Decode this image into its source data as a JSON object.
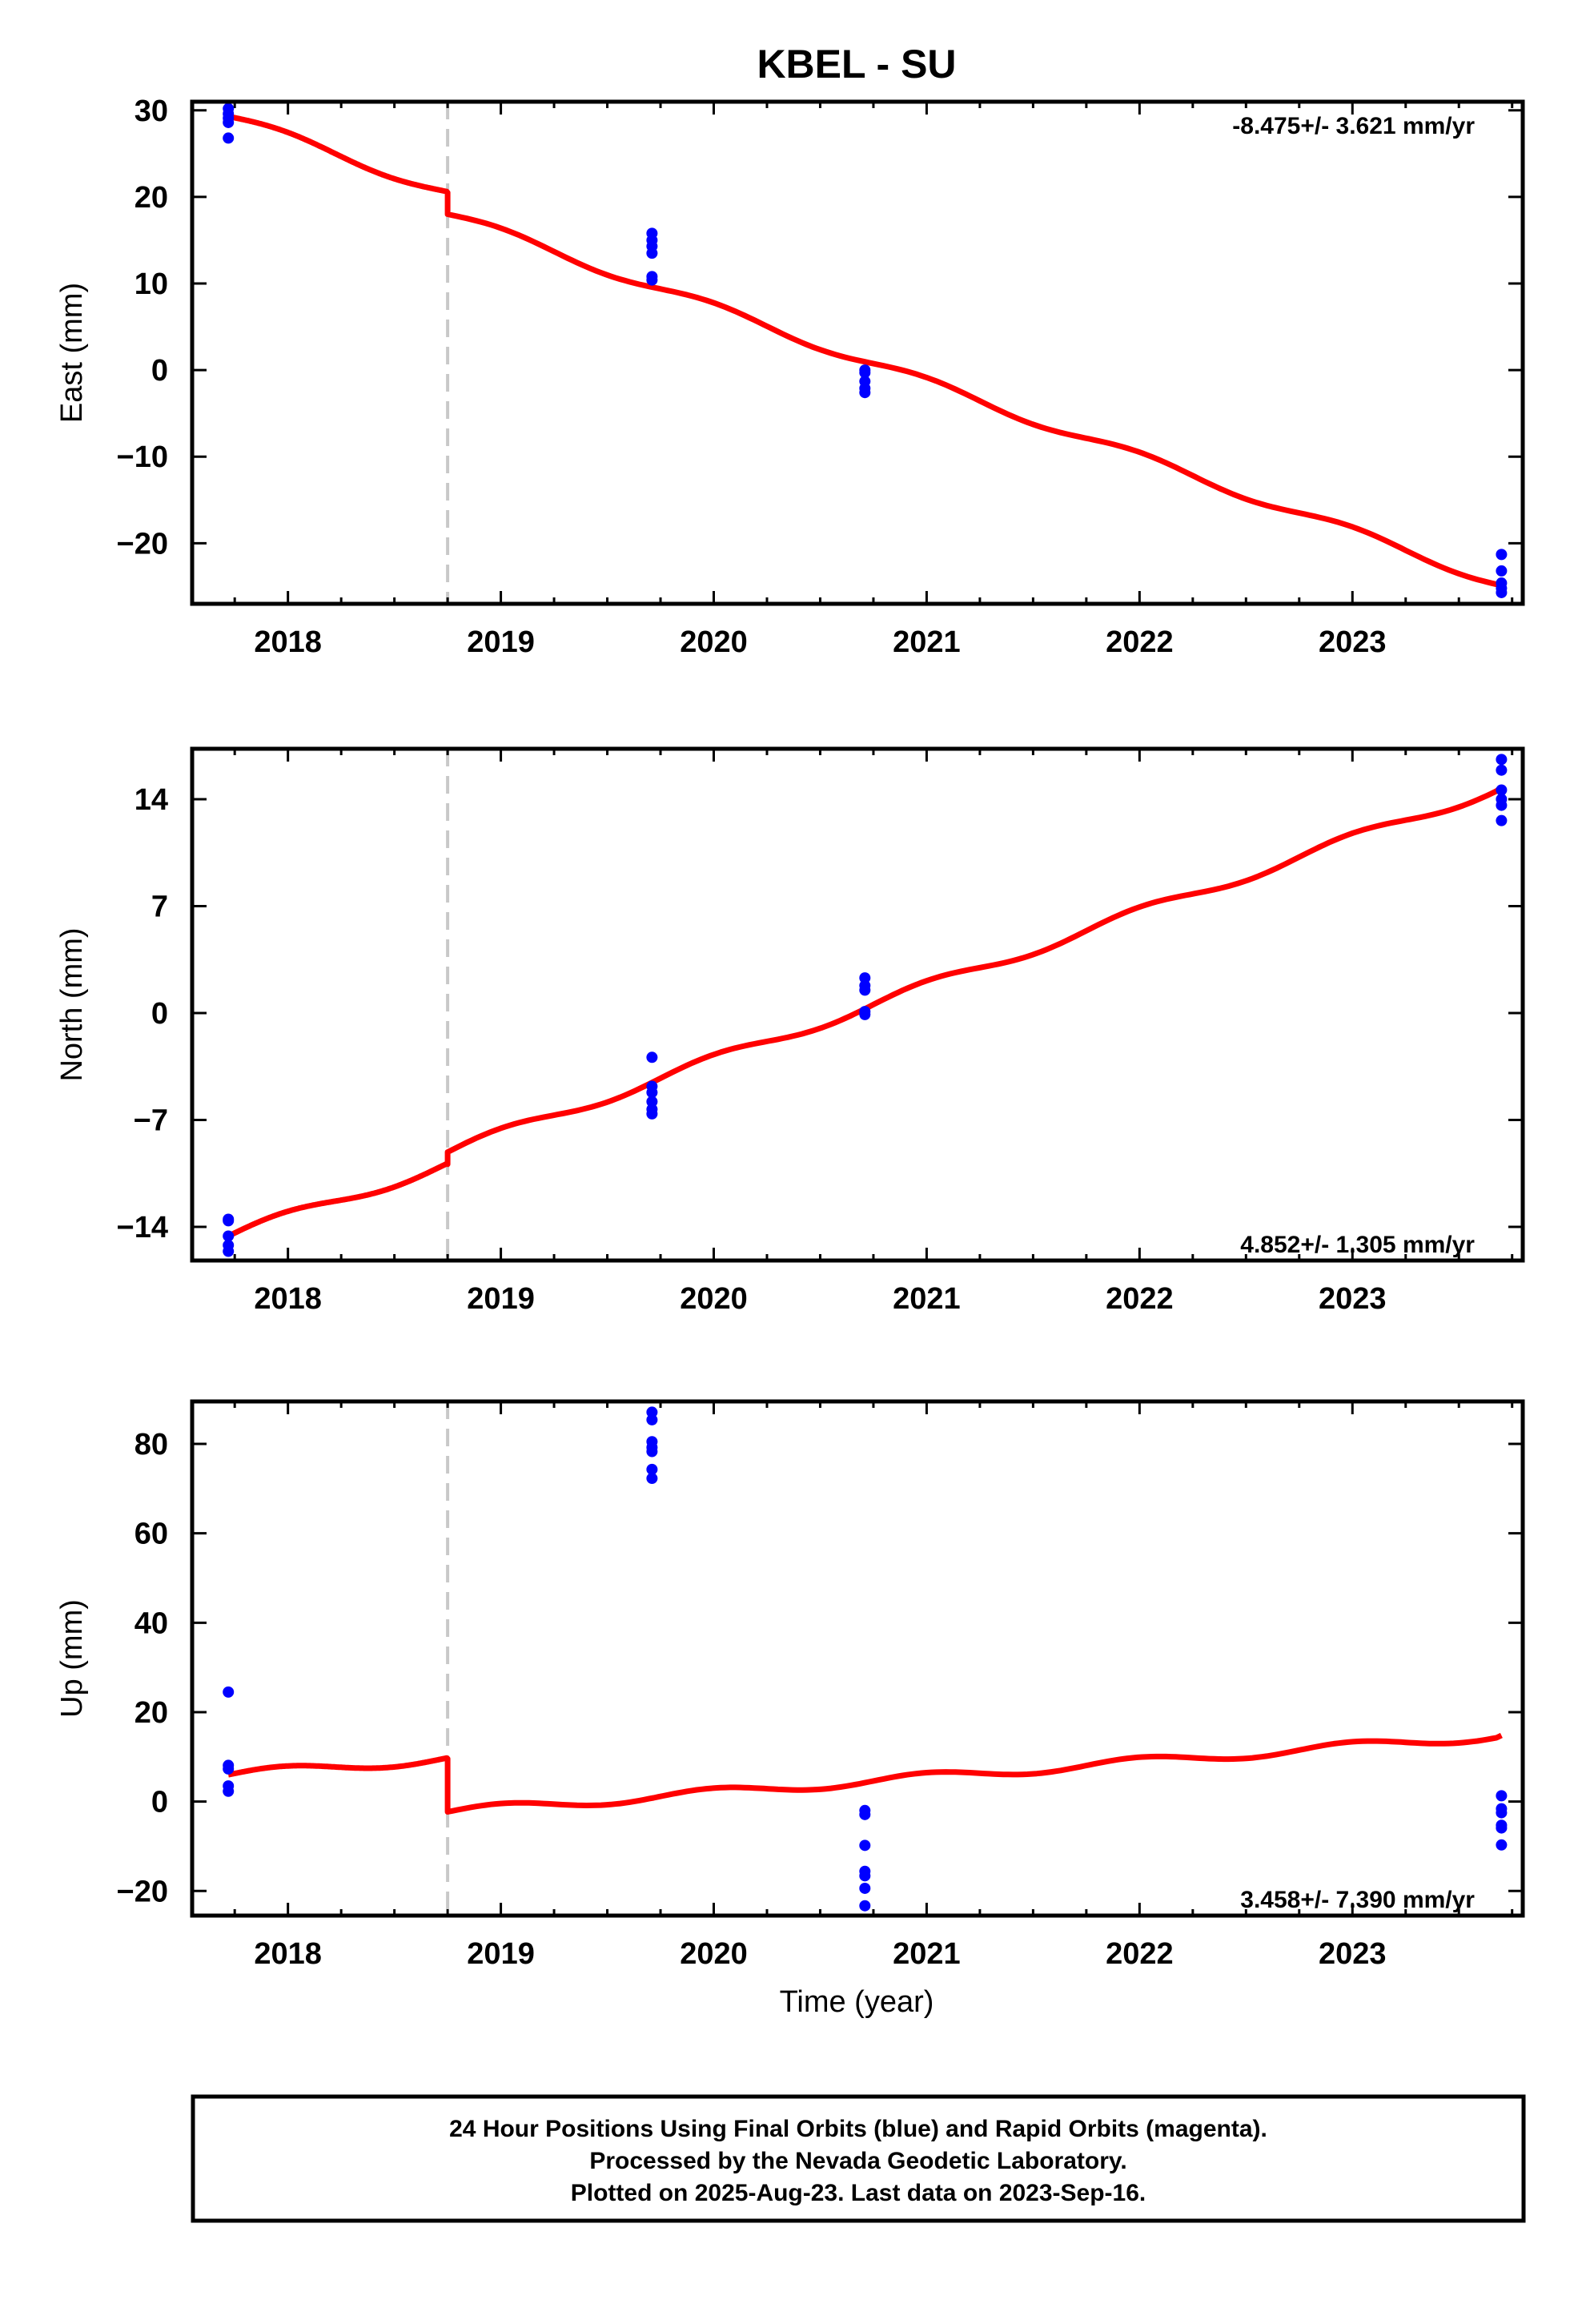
{
  "title": "KBEL - SU",
  "xlabel": "Time (year)",
  "footer": {
    "line1": "24 Hour Positions Using Final Orbits (blue) and Rapid Orbits (magenta).",
    "line2": "Processed by the Nevada Geodetic Laboratory.",
    "line3": "Plotted on 2025-Aug-23. Last data on 2023-Sep-16."
  },
  "colors": {
    "final": "#0000ff",
    "model": "#ff0000",
    "offset_line": "#c8c8c8"
  },
  "chart_data": [
    {
      "type": "scatter",
      "component": "east",
      "ylabel": "East (mm)",
      "rate_label": "-8.475+/- 3.621 mm/yr",
      "rate_position": "top-right",
      "xlim": [
        2017.55,
        2023.8
      ],
      "ylim": [
        -27,
        31
      ],
      "xticks": [
        2018,
        2019,
        2020,
        2021,
        2022,
        2023
      ],
      "yticks": [
        30,
        20,
        10,
        0,
        -10,
        -20
      ],
      "ytick_labels": [
        "30",
        "20",
        "10",
        "0",
        "−10",
        "−20"
      ],
      "offset_epoch": 2018.75,
      "points": [
        {
          "x": 2017.72,
          "y": 30.2
        },
        {
          "x": 2017.72,
          "y": 29.6
        },
        {
          "x": 2017.72,
          "y": 29.1
        },
        {
          "x": 2017.72,
          "y": 28.6
        },
        {
          "x": 2017.72,
          "y": 26.8
        },
        {
          "x": 2019.71,
          "y": 15.8
        },
        {
          "x": 2019.71,
          "y": 15.0
        },
        {
          "x": 2019.71,
          "y": 14.3
        },
        {
          "x": 2019.71,
          "y": 13.5
        },
        {
          "x": 2019.71,
          "y": 10.8
        },
        {
          "x": 2019.71,
          "y": 10.4
        },
        {
          "x": 2020.71,
          "y": 0.0
        },
        {
          "x": 2020.71,
          "y": -0.3
        },
        {
          "x": 2020.71,
          "y": -1.3
        },
        {
          "x": 2020.71,
          "y": -2.1
        },
        {
          "x": 2020.71,
          "y": -2.6
        },
        {
          "x": 2023.7,
          "y": -21.3
        },
        {
          "x": 2023.7,
          "y": -23.2
        },
        {
          "x": 2023.7,
          "y": -24.6
        },
        {
          "x": 2023.7,
          "y": -25.2
        },
        {
          "x": 2023.7,
          "y": -25.7
        }
      ],
      "model": {
        "segments": [
          {
            "x0": 2017.72,
            "x1": 2018.75,
            "y0": 29.3,
            "y1": 20.5
          },
          {
            "x0": 2018.75,
            "x1": 2023.7,
            "y0": 18.0,
            "y1": -24.7
          }
        ],
        "seasonal_amplitude": 0.55
      }
    },
    {
      "type": "scatter",
      "component": "north",
      "ylabel": "North (mm)",
      "rate_label": "4.852+/- 1.305 mm/yr",
      "rate_position": "bottom-right",
      "xlim": [
        2017.55,
        2023.8
      ],
      "ylim": [
        -16.2,
        17.3
      ],
      "xticks": [
        2018,
        2019,
        2020,
        2021,
        2022,
        2023
      ],
      "yticks": [
        14,
        7,
        0,
        -7,
        -14
      ],
      "ytick_labels": [
        "14",
        "7",
        "0",
        "−7",
        "−14"
      ],
      "offset_epoch": 2018.75,
      "points": [
        {
          "x": 2017.72,
          "y": -13.5
        },
        {
          "x": 2017.72,
          "y": -13.6
        },
        {
          "x": 2017.72,
          "y": -14.6
        },
        {
          "x": 2017.72,
          "y": -15.2
        },
        {
          "x": 2017.72,
          "y": -15.6
        },
        {
          "x": 2019.71,
          "y": -2.9
        },
        {
          "x": 2019.71,
          "y": -4.8
        },
        {
          "x": 2019.71,
          "y": -5.2
        },
        {
          "x": 2019.71,
          "y": -5.8
        },
        {
          "x": 2019.71,
          "y": -6.3
        },
        {
          "x": 2019.71,
          "y": -6.6
        },
        {
          "x": 2020.71,
          "y": 2.3
        },
        {
          "x": 2020.71,
          "y": 1.8
        },
        {
          "x": 2020.71,
          "y": 1.5
        },
        {
          "x": 2020.71,
          "y": 0.1
        },
        {
          "x": 2020.71,
          "y": -0.1
        },
        {
          "x": 2023.7,
          "y": 16.6
        },
        {
          "x": 2023.7,
          "y": 15.9
        },
        {
          "x": 2023.7,
          "y": 14.6
        },
        {
          "x": 2023.7,
          "y": 14.0
        },
        {
          "x": 2023.7,
          "y": 13.6
        },
        {
          "x": 2023.7,
          "y": 12.6
        }
      ],
      "model": {
        "segments": [
          {
            "x0": 2017.72,
            "x1": 2018.75,
            "y0": -14.6,
            "y1": -9.9
          },
          {
            "x0": 2018.75,
            "x1": 2023.7,
            "y0": -9.1,
            "y1": 14.8
          }
        ],
        "seasonal_amplitude": 0.35
      }
    },
    {
      "type": "scatter",
      "component": "up",
      "ylabel": "Up (mm)",
      "rate_label": "3.458+/- 7.390 mm/yr",
      "rate_position": "bottom-right",
      "xlim": [
        2017.55,
        2023.8
      ],
      "ylim": [
        -25.5,
        89.5
      ],
      "xticks": [
        2018,
        2019,
        2020,
        2021,
        2022,
        2023
      ],
      "yticks": [
        80,
        60,
        40,
        20,
        0,
        -20
      ],
      "ytick_labels": [
        "80",
        "60",
        "40",
        "20",
        "0",
        "−20"
      ],
      "offset_epoch": 2018.75,
      "points": [
        {
          "x": 2017.72,
          "y": 24.5
        },
        {
          "x": 2017.72,
          "y": 8.1
        },
        {
          "x": 2017.72,
          "y": 7.3
        },
        {
          "x": 2017.72,
          "y": 3.5
        },
        {
          "x": 2017.72,
          "y": 2.3
        },
        {
          "x": 2019.71,
          "y": 87.1
        },
        {
          "x": 2019.71,
          "y": 85.4
        },
        {
          "x": 2019.71,
          "y": 80.5
        },
        {
          "x": 2019.71,
          "y": 79.2
        },
        {
          "x": 2019.71,
          "y": 78.3
        },
        {
          "x": 2019.71,
          "y": 74.3
        },
        {
          "x": 2019.71,
          "y": 72.3
        },
        {
          "x": 2020.71,
          "y": -2.0
        },
        {
          "x": 2020.71,
          "y": -2.9
        },
        {
          "x": 2020.71,
          "y": -9.8
        },
        {
          "x": 2020.71,
          "y": -15.6
        },
        {
          "x": 2020.71,
          "y": -16.6
        },
        {
          "x": 2020.71,
          "y": -19.4
        },
        {
          "x": 2020.71,
          "y": -23.3
        },
        {
          "x": 2023.7,
          "y": 1.3
        },
        {
          "x": 2023.7,
          "y": -1.6
        },
        {
          "x": 2023.7,
          "y": -2.5
        },
        {
          "x": 2023.7,
          "y": -5.3
        },
        {
          "x": 2023.7,
          "y": -5.9
        },
        {
          "x": 2023.7,
          "y": -9.7
        }
      ],
      "model": {
        "segments": [
          {
            "x0": 2017.72,
            "x1": 2018.75,
            "y0": 6.0,
            "y1": 9.6
          },
          {
            "x0": 2018.75,
            "x1": 2023.7,
            "y0": -2.3,
            "y1": 14.8
          }
        ],
        "seasonal_amplitude": 1.0
      }
    }
  ]
}
